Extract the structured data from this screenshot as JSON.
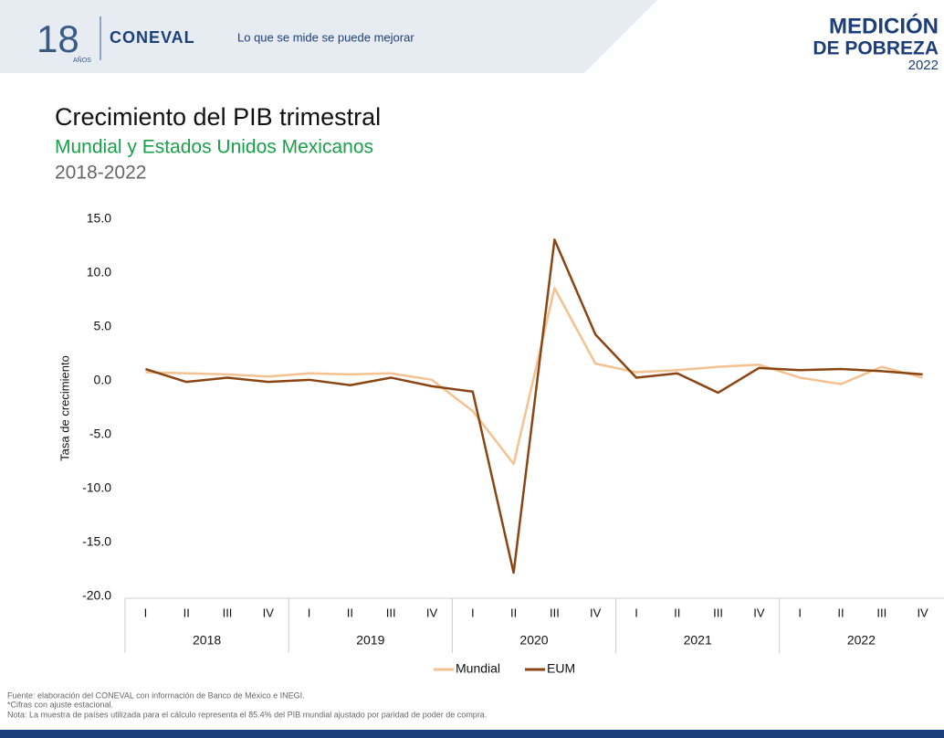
{
  "header": {
    "badge_number": "18",
    "badge_text": "AÑOS",
    "brand": "CONEVAL",
    "slogan": "Lo que se mide se puede mejorar",
    "logo_line1": "MEDICIÓN",
    "logo_line2": "DE POBREZA",
    "logo_year": "2022"
  },
  "chart_data": {
    "type": "line",
    "title": "Crecimiento del PIB trimestral",
    "subtitle": "Mundial y Estados Unidos Mexicanos",
    "period": "2018-2022",
    "y_label": "Tasa de crecimiento",
    "categories": [
      "I",
      "II",
      "III",
      "IV",
      "I",
      "II",
      "III",
      "IV",
      "I",
      "II",
      "III",
      "IV",
      "I",
      "II",
      "III",
      "IV",
      "I",
      "II",
      "III",
      "IV"
    ],
    "x_groups": [
      "2018",
      "2019",
      "2020",
      "2021",
      "2022"
    ],
    "series": [
      {
        "name": "Mundial",
        "color": "#f4c191",
        "values": [
          0.8,
          0.7,
          0.6,
          0.4,
          0.7,
          0.6,
          0.7,
          0.1,
          -2.8,
          -7.7,
          8.6,
          1.6,
          0.8,
          1.0,
          1.3,
          1.5,
          0.3,
          -0.3,
          1.3,
          0.3
        ]
      },
      {
        "name": "EUM",
        "color": "#8b4513",
        "values": [
          1.1,
          -0.1,
          0.3,
          -0.1,
          0.1,
          -0.4,
          0.3,
          -0.5,
          -1.0,
          -17.8,
          13.1,
          4.3,
          0.3,
          0.7,
          -1.1,
          1.2,
          1.0,
          1.1,
          0.9,
          0.6
        ]
      }
    ],
    "ylim": [
      -20,
      15
    ],
    "yticks": [
      {
        "value": 15,
        "label": "15.0"
      },
      {
        "value": 10,
        "label": "10.0"
      },
      {
        "value": 5,
        "label": "5.0"
      },
      {
        "value": 0,
        "label": "0.0"
      },
      {
        "value": -5,
        "label": "-5.0"
      },
      {
        "value": -10,
        "label": "-10.0"
      },
      {
        "value": -15,
        "label": "-15.0"
      },
      {
        "value": -20,
        "label": "-20.0"
      }
    ],
    "grid": false,
    "legend": "bottom"
  },
  "footer": {
    "notes": [
      "Fuente: elaboración del CONEVAL con información de Banco de México e INEGI.",
      "*Cifras con ajuste estacional.",
      "Nota: La muestra de países utilizada para el cálculo representa el 85.4% del PIB mundial ajustado por paridad de poder de compra."
    ]
  }
}
